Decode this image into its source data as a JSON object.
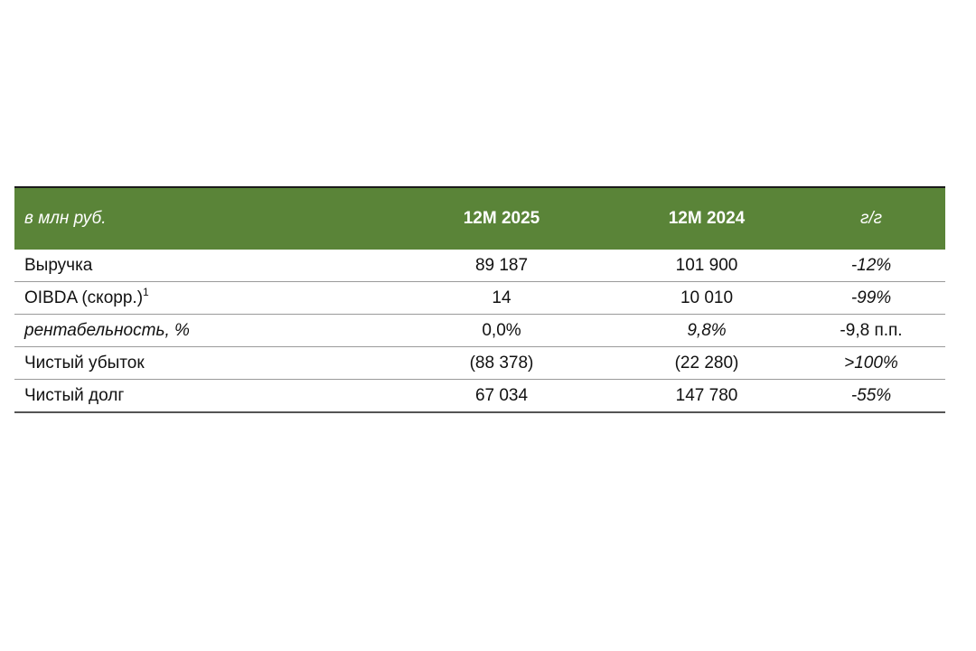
{
  "table": {
    "header": {
      "label": "в млн руб.",
      "col1": "12M 2025",
      "col2": "12M 2024",
      "col3": "г/г"
    },
    "rows": [
      {
        "label": "Выручка",
        "sup": "",
        "v1": "89 187",
        "v2": "101 900",
        "v3": "-12%"
      },
      {
        "label": "OIBDA (скорр.)",
        "sup": "1",
        "v1": "14",
        "v2": "10 010",
        "v3": "-99%"
      },
      {
        "label": "рентабельность, %",
        "sup": "",
        "v1": "0,0%",
        "v2": "9,8%",
        "v3": "-9,8 п.п."
      },
      {
        "label": "Чистый убыток",
        "sup": "",
        "v1": "(88 378)",
        "v2": "(22 280)",
        "v3": ">100%"
      },
      {
        "label": "Чистый долг",
        "sup": "",
        "v1": "67 034",
        "v2": "147 780",
        "v3": "-55%"
      }
    ]
  }
}
